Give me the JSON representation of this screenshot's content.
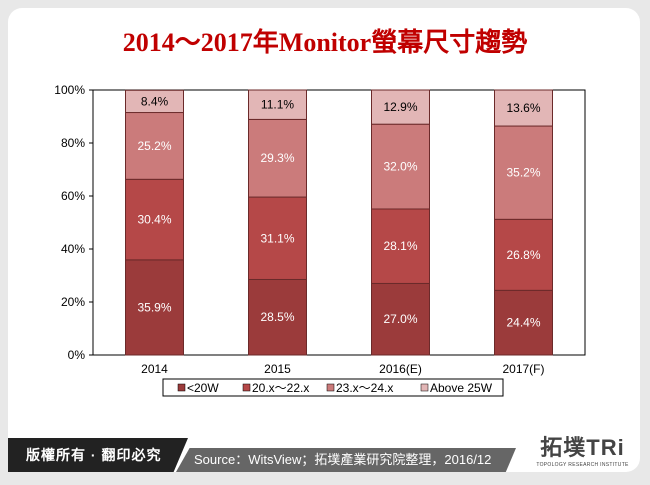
{
  "title": "2014～2017年Monitor螢幕尺寸趨勢",
  "footer": {
    "copyright": "版權所有 · 翻印必究",
    "source": "Source：WitsView；拓墣產業研究院整理，2016/12",
    "logo_text": "拓墣TRi",
    "logo_sub": "TOPOLOGY RESEARCH INSTITUTE"
  },
  "chart_data": {
    "type": "bar",
    "stacked": true,
    "percent": true,
    "categories": [
      "2014",
      "2015",
      "2016(E)",
      "2017(F)"
    ],
    "series": [
      {
        "name": "<20W",
        "values": [
          35.9,
          28.5,
          27.0,
          24.4
        ],
        "color": "#9b3b3b",
        "label_color": "#ffffff"
      },
      {
        "name": "20.x～22.x",
        "values": [
          30.4,
          31.1,
          28.1,
          26.8
        ],
        "color": "#b54848",
        "label_color": "#ffffff"
      },
      {
        "name": "23.x～24.x",
        "values": [
          25.2,
          29.3,
          32.0,
          35.2
        ],
        "color": "#cb7b7b",
        "label_color": "#ffffff"
      },
      {
        "name": "Above 25W",
        "values": [
          8.4,
          11.1,
          12.9,
          13.6
        ],
        "color": "#e2b6b6",
        "label_color": "#000000"
      }
    ],
    "data_labels": [
      [
        "35.9%",
        "28.5%",
        "27.0%",
        "24.4%"
      ],
      [
        "30.4%",
        "31.1%",
        "28.1%",
        "26.8%"
      ],
      [
        "25.2%",
        "29.3%",
        "32.0%",
        "35.2%"
      ],
      [
        "8.4%",
        "11.1%",
        "12.9%",
        "13.6%"
      ]
    ],
    "yticks": [
      "0%",
      "20%",
      "40%",
      "60%",
      "80%",
      "100%"
    ],
    "ylim": [
      0,
      100
    ],
    "grid": false,
    "legend": "bottom"
  }
}
